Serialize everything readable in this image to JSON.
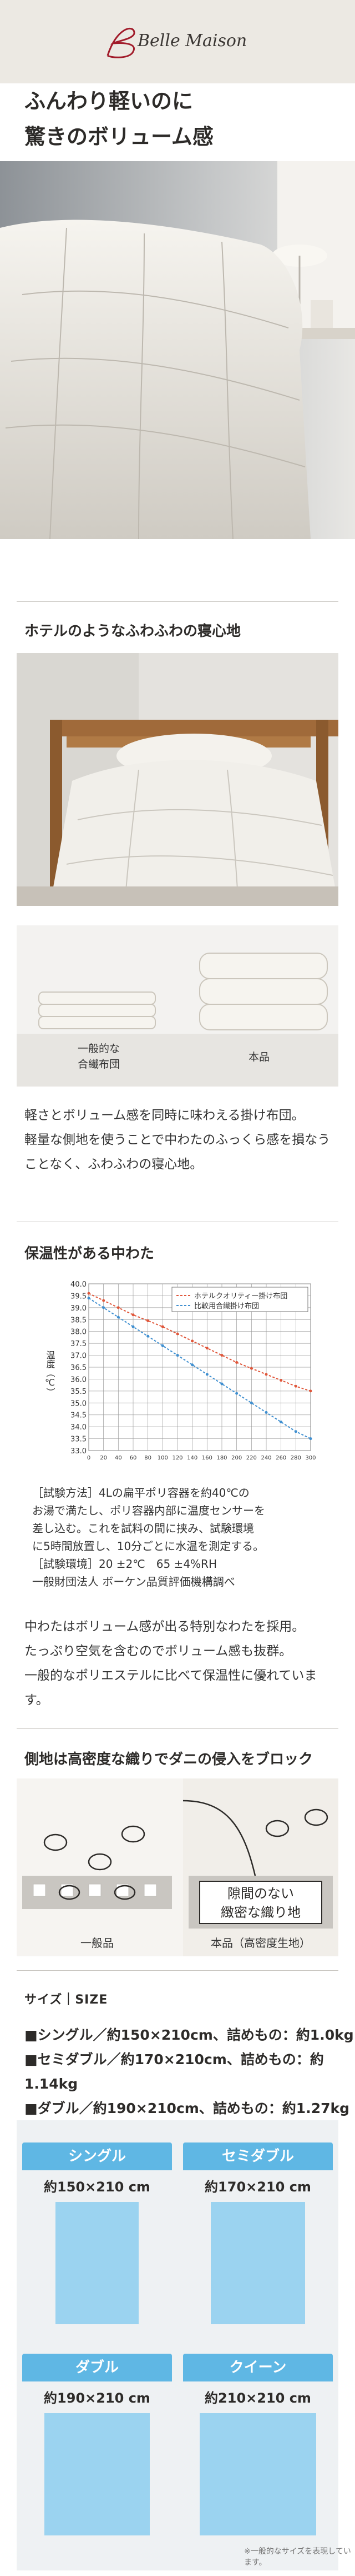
{
  "brand": {
    "name": "Belle Maison",
    "bg": "#ece9e3"
  },
  "headline": [
    "ふんわり軽いのに",
    "驚きのボリューム感"
  ],
  "section1": {
    "title": "ホテルのようなふわふわの寝心地",
    "compare_left": [
      "一般的な",
      "合繊布団"
    ],
    "compare_right": "本品",
    "body": [
      "軽さとボリューム感を同時に味わえる掛け布団。",
      "軽量な側地を使うことで中わたのふっくら感を損なう",
      "ことなく、ふわふわの寝心地。"
    ]
  },
  "section2": {
    "title": "保温性がある中わた",
    "caption": [
      "［試験方法］4Lの扁平ポリ容器を約40℃の",
      "お湯で満たし、ポリ容器内部に温度センサーを",
      "差し込む。これを試料の間に挟み、試験環境",
      "に5時間放置し、10分ごとに水温を測定する。",
      "［試験環境］20 ±2℃　65 ±4%RH",
      "一般財団法人 ボーケン品質評価機構調べ"
    ],
    "body": [
      "中わたはボリューム感が出る特別なわたを採用。",
      "たっぷり空気を含むのでボリューム感も抜群。",
      "一般的なポリエステルに比べて保温性に優れています。"
    ]
  },
  "chart_data": {
    "type": "line",
    "ylabel": "温度（℃）",
    "xlabel": "",
    "x": [
      0,
      20,
      40,
      60,
      80,
      100,
      120,
      140,
      160,
      180,
      200,
      220,
      240,
      260,
      280,
      300
    ],
    "xticks": [
      "0",
      "20",
      "40",
      "60",
      "80",
      "100",
      "120",
      "140",
      "160",
      "180",
      "200",
      "220",
      "240",
      "260",
      "280",
      "300"
    ],
    "ylim": [
      33.0,
      40.0
    ],
    "yticks": [
      "40.0",
      "39.5",
      "39.0",
      "38.5",
      "38.0",
      "37.5",
      "37.0",
      "36.5",
      "36.0",
      "35.5",
      "35.0",
      "34.5",
      "34.0",
      "33.5",
      "33.0"
    ],
    "grid": true,
    "legend": "top-right",
    "series": [
      {
        "name": "ホテルクオリティー掛け布団",
        "color": "#e0563a",
        "values": [
          39.6,
          39.3,
          39.0,
          38.7,
          38.45,
          38.2,
          37.9,
          37.6,
          37.3,
          37.0,
          36.7,
          36.45,
          36.2,
          35.95,
          35.7,
          35.5
        ]
      },
      {
        "name": "比較用合繊掛け布団",
        "color": "#3f8fd0",
        "values": [
          39.4,
          39.0,
          38.6,
          38.2,
          37.8,
          37.4,
          37.0,
          36.6,
          36.2,
          35.8,
          35.4,
          35.0,
          34.6,
          34.2,
          33.8,
          33.5
        ]
      }
    ]
  },
  "section3": {
    "title": "側地は高密度な織りでダニの侵入をブロック",
    "callout": [
      "隙間のない",
      "緻密な織り地"
    ],
    "left_label": "一般品",
    "right_label": "本品（高密度生地）"
  },
  "size": {
    "heading": "サイズ｜SIZE",
    "specs": [
      "■シングル／約150×210cm、詰めもの：約1.0kg",
      "■セミダブル／約170×210cm、詰めもの：約1.14kg",
      "■ダブル／約190×210cm、詰めもの：約1.27kg"
    ],
    "cards": [
      {
        "label": "シングル",
        "dim": "約150×210 cm"
      },
      {
        "label": "セミダブル",
        "dim": "約170×210 cm"
      },
      {
        "label": "ダブル",
        "dim": "約190×210 cm"
      },
      {
        "label": "クイーン",
        "dim": "約210×210 cm"
      }
    ],
    "note": "※一般的なサイズを表現しています。",
    "accent": "#5fb7e4"
  }
}
